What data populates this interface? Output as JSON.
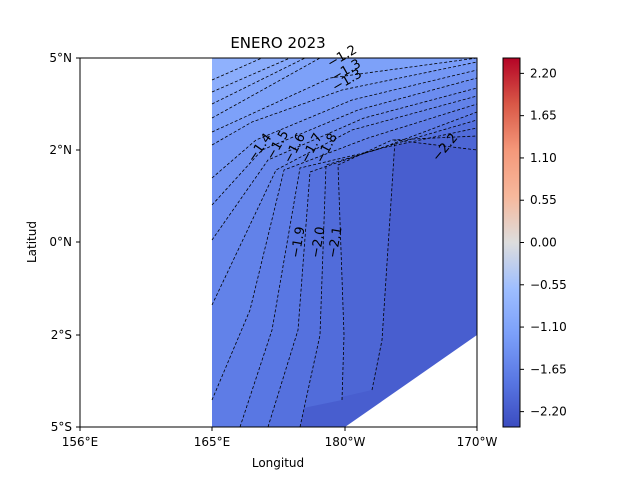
{
  "chart_data": {
    "type": "heatmap",
    "title": "ENERO 2023",
    "xlabel": "Longitud",
    "ylabel": "Latitud",
    "x_ticks": [
      "156°E",
      "165°E",
      "180°W",
      "170°W"
    ],
    "y_ticks": [
      "5°N",
      "2°N",
      "0°N",
      "2°S",
      "5°S"
    ],
    "colorbar": {
      "colormap": "coolwarm",
      "range": [
        -2.4,
        2.4
      ],
      "ticks": [
        "2.20",
        "1.65",
        "1.10",
        "0.55",
        "0.00",
        "−0.55",
        "−1.10",
        "−1.65",
        "−2.20"
      ]
    },
    "contour_levels": [
      "−0.8",
      "−0.9",
      "−1.0",
      "−1.1",
      "−1.2",
      "−1.3",
      "−1.4",
      "−1.5",
      "−1.6",
      "−1.7",
      "−1.8",
      "−1.9",
      "−2.0",
      "−2.1",
      "−2.2"
    ],
    "contour_labels": [
      "−1.2",
      "−1.3",
      "−1.4",
      "−1.5",
      "−1.6",
      "−1.7",
      "−1.8",
      "−1.9",
      "−2.0",
      "−2.1",
      "−2.2"
    ],
    "field": {
      "coverage": "data from 165°E eastward; lower-right corner (south-east) has no data",
      "minimum": -2.3,
      "maximum": -0.8,
      "gradient": "values decrease from north-west (about −0.8) toward east (about −2.3)"
    },
    "grid": false,
    "legend": "colorbar-right"
  }
}
